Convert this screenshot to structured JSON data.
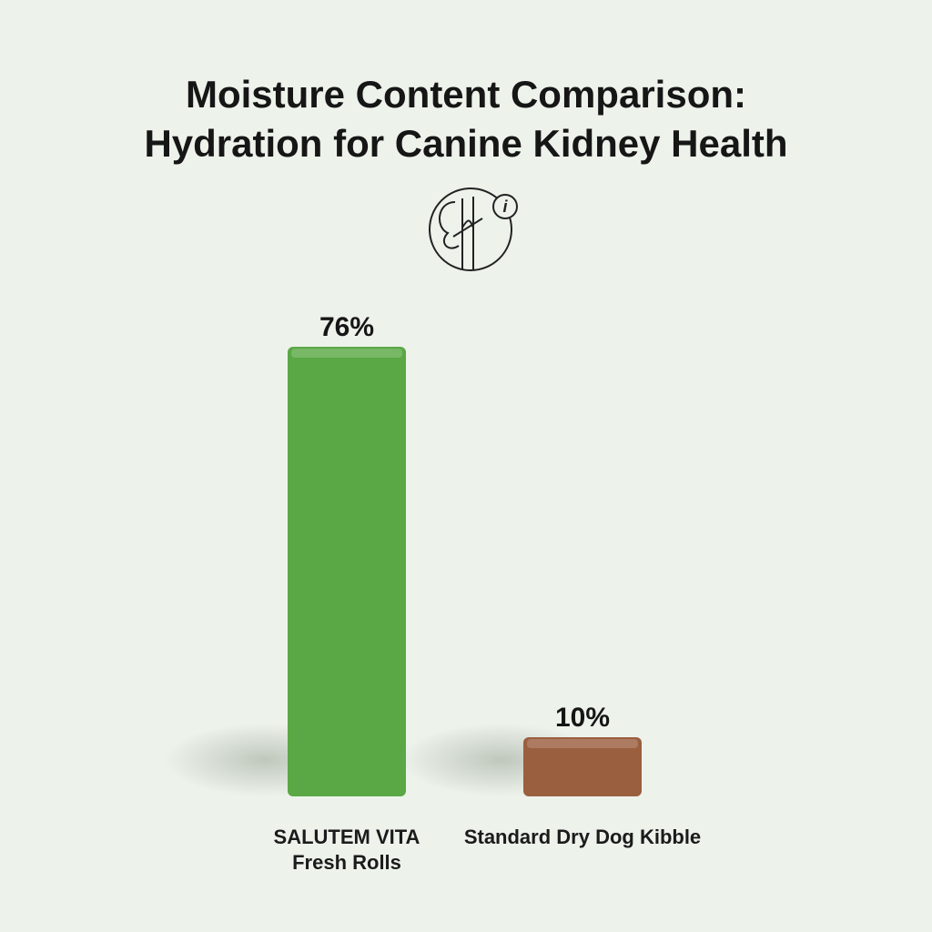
{
  "chart_data": {
    "type": "bar",
    "title": "Moisture Content Comparison:",
    "subtitle": "Hydration for Canine Kidney Health",
    "categories": [
      "SALUTEM VITA Fresh Rolls",
      "Standard Dry Dog Kibble"
    ],
    "values": [
      76,
      10
    ],
    "value_labels": [
      "76%",
      "10%"
    ],
    "colors": [
      "#5aa845",
      "#9a5f3f"
    ]
  }
}
